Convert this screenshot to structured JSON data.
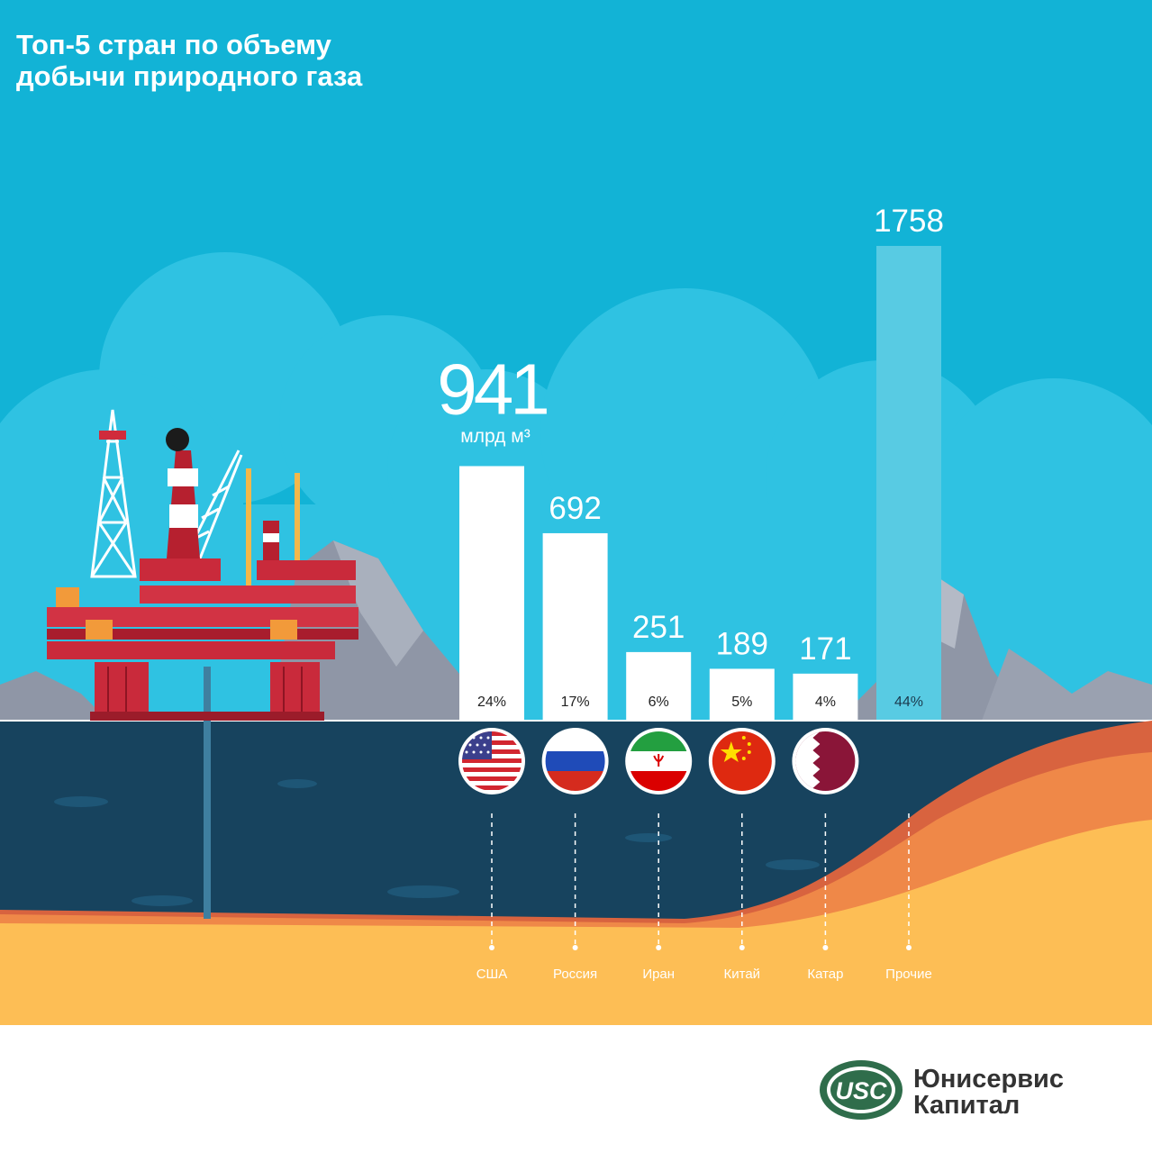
{
  "page": {
    "title_line1": "Топ-5 стран по объему",
    "title_line2": "добычи природного газа"
  },
  "chart_data": {
    "type": "bar",
    "title": "Топ-5 стран по объему добычи природного газа",
    "unit": "млрд м³",
    "categories": [
      "США",
      "Россия",
      "Иран",
      "Китай",
      "Катар",
      "Прочие"
    ],
    "values": [
      941,
      692,
      251,
      189,
      171,
      1758
    ],
    "value_labels": [
      "941",
      "692",
      "251",
      "189",
      "171",
      "1758"
    ],
    "shares": [
      "24%",
      "17%",
      "6%",
      "5%",
      "4%",
      "44%"
    ],
    "flags": [
      "usa-flag",
      "russia-flag",
      "iran-flag",
      "china-flag",
      "qatar-flag",
      ""
    ],
    "colors": {
      "bar": "#ffffff",
      "other_bar": "#58cbe3",
      "sky": "#12b3d6",
      "sea": "#17435e",
      "sand": "#fdbe55"
    }
  },
  "logo": {
    "name_line1": "Юнисервис",
    "name_line2": "Капитал",
    "mark_text": "USC"
  }
}
